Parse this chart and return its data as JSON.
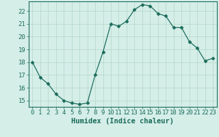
{
  "x": [
    0,
    1,
    2,
    3,
    4,
    5,
    6,
    7,
    8,
    9,
    10,
    11,
    12,
    13,
    14,
    15,
    16,
    17,
    18,
    19,
    20,
    21,
    22,
    23
  ],
  "y": [
    18.0,
    16.8,
    16.3,
    15.5,
    15.0,
    14.8,
    14.7,
    14.8,
    17.0,
    18.8,
    21.0,
    20.8,
    21.2,
    22.1,
    22.5,
    22.4,
    21.8,
    21.6,
    20.7,
    20.7,
    19.6,
    19.1,
    18.1,
    18.3
  ],
  "line_color": "#1a6b5a",
  "marker": "D",
  "marker_size": 2.5,
  "bg_color": "#d5eee8",
  "grid_color": "#b8d9cc",
  "xlabel": "Humidex (Indice chaleur)",
  "xlim": [
    -0.5,
    23.5
  ],
  "ylim": [
    14.5,
    22.75
  ],
  "yticks": [
    15,
    16,
    17,
    18,
    19,
    20,
    21,
    22
  ],
  "xticks": [
    0,
    1,
    2,
    3,
    4,
    5,
    6,
    7,
    8,
    9,
    10,
    11,
    12,
    13,
    14,
    15,
    16,
    17,
    18,
    19,
    20,
    21,
    22,
    23
  ],
  "tick_color": "#1a6b5a",
  "label_color": "#1a6b5a",
  "font_size": 6.5,
  "xlabel_fontsize": 7.5
}
